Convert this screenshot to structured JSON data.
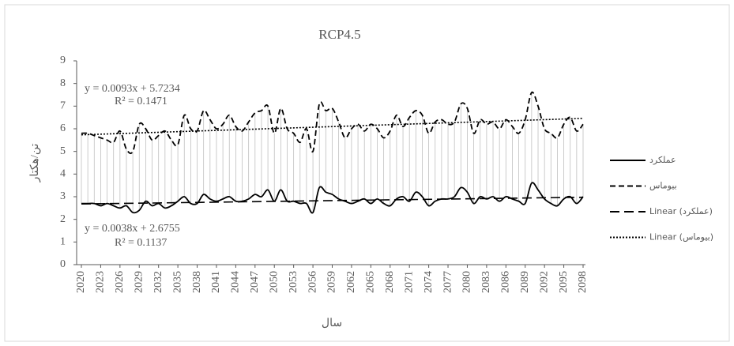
{
  "chart_data": {
    "type": "line",
    "title": "RCP4.5",
    "x_label": "سال",
    "y_label": "تن/هکتار",
    "x": [
      2020,
      2021,
      2022,
      2023,
      2024,
      2025,
      2026,
      2027,
      2028,
      2029,
      2030,
      2031,
      2032,
      2033,
      2034,
      2035,
      2036,
      2037,
      2038,
      2039,
      2040,
      2041,
      2042,
      2043,
      2044,
      2045,
      2046,
      2047,
      2048,
      2049,
      2050,
      2051,
      2052,
      2053,
      2054,
      2055,
      2056,
      2057,
      2058,
      2059,
      2060,
      2061,
      2062,
      2063,
      2064,
      2065,
      2066,
      2067,
      2068,
      2069,
      2070,
      2071,
      2072,
      2073,
      2074,
      2075,
      2076,
      2077,
      2078,
      2079,
      2080,
      2081,
      2082,
      2083,
      2084,
      2085,
      2086,
      2087,
      2088,
      2089,
      2090,
      2091,
      2092,
      2093,
      2094,
      2095,
      2096,
      2097,
      2098
    ],
    "xlim": [
      2020,
      2098
    ],
    "xticks": [
      2020,
      2023,
      2026,
      2029,
      2032,
      2035,
      2038,
      2041,
      2044,
      2047,
      2050,
      2053,
      2056,
      2059,
      2062,
      2065,
      2068,
      2071,
      2074,
      2077,
      2080,
      2083,
      2086,
      2089,
      2092,
      2095,
      2098
    ],
    "ylim": [
      0,
      9
    ],
    "yticks": [
      0,
      1,
      2,
      3,
      4,
      5,
      6,
      7,
      8,
      9
    ],
    "high_low_lines": true,
    "series": [
      {
        "name": "عملکرد",
        "color": "#000000",
        "style": "solid",
        "values": [
          2.7,
          2.7,
          2.7,
          2.6,
          2.7,
          2.6,
          2.5,
          2.6,
          2.3,
          2.4,
          2.8,
          2.6,
          2.7,
          2.5,
          2.6,
          2.8,
          3.0,
          2.7,
          2.7,
          3.1,
          2.9,
          2.8,
          2.9,
          3.0,
          2.8,
          2.8,
          2.9,
          3.1,
          3.0,
          3.3,
          2.8,
          3.3,
          2.8,
          2.8,
          2.7,
          2.7,
          2.3,
          3.4,
          3.2,
          3.1,
          2.9,
          2.8,
          2.7,
          2.8,
          2.9,
          2.7,
          2.9,
          2.7,
          2.6,
          2.9,
          3.0,
          2.8,
          3.2,
          3.0,
          2.6,
          2.8,
          2.9,
          2.9,
          3.0,
          3.4,
          3.2,
          2.7,
          3.0,
          2.9,
          3.0,
          2.8,
          3.0,
          2.9,
          2.8,
          2.7,
          3.6,
          3.3,
          2.9,
          2.7,
          2.6,
          2.9,
          3.0,
          2.7,
          3.0
        ]
      },
      {
        "name": "بیوماس",
        "color": "#000000",
        "style": "dashed",
        "values": [
          5.8,
          5.8,
          5.7,
          5.6,
          5.5,
          5.4,
          5.9,
          5.1,
          5.0,
          6.2,
          6.0,
          5.5,
          5.7,
          5.9,
          5.5,
          5.3,
          6.6,
          6.0,
          5.9,
          6.8,
          6.4,
          6.0,
          6.2,
          6.6,
          6.1,
          5.9,
          6.3,
          6.7,
          6.8,
          7.0,
          5.8,
          6.9,
          6.0,
          5.8,
          5.4,
          6.0,
          5.0,
          7.1,
          6.8,
          6.9,
          6.3,
          5.6,
          6.0,
          6.2,
          5.9,
          6.2,
          6.0,
          5.6,
          5.9,
          6.6,
          6.1,
          6.5,
          6.8,
          6.6,
          5.8,
          6.3,
          6.4,
          6.2,
          6.3,
          7.1,
          6.9,
          5.8,
          6.4,
          6.2,
          6.3,
          6.0,
          6.4,
          6.1,
          5.8,
          6.4,
          7.6,
          7.0,
          6.0,
          5.8,
          5.6,
          6.2,
          6.5,
          5.9,
          6.2
        ]
      }
    ],
    "trendlines": [
      {
        "name": "Linear (عملکرد)",
        "style": "long-dash",
        "color": "#000000",
        "equation": "y = 0.0038x + 2.6755",
        "r2": "R² = 0.1137",
        "slope": 0.0038,
        "intercept": 2.6755
      },
      {
        "name": "Linear (بیوماس)",
        "style": "dotted",
        "color": "#000000",
        "equation": "y = 0.0093x + 5.7234",
        "r2": "R² = 0.1471",
        "slope": 0.0093,
        "intercept": 5.7234
      }
    ]
  }
}
